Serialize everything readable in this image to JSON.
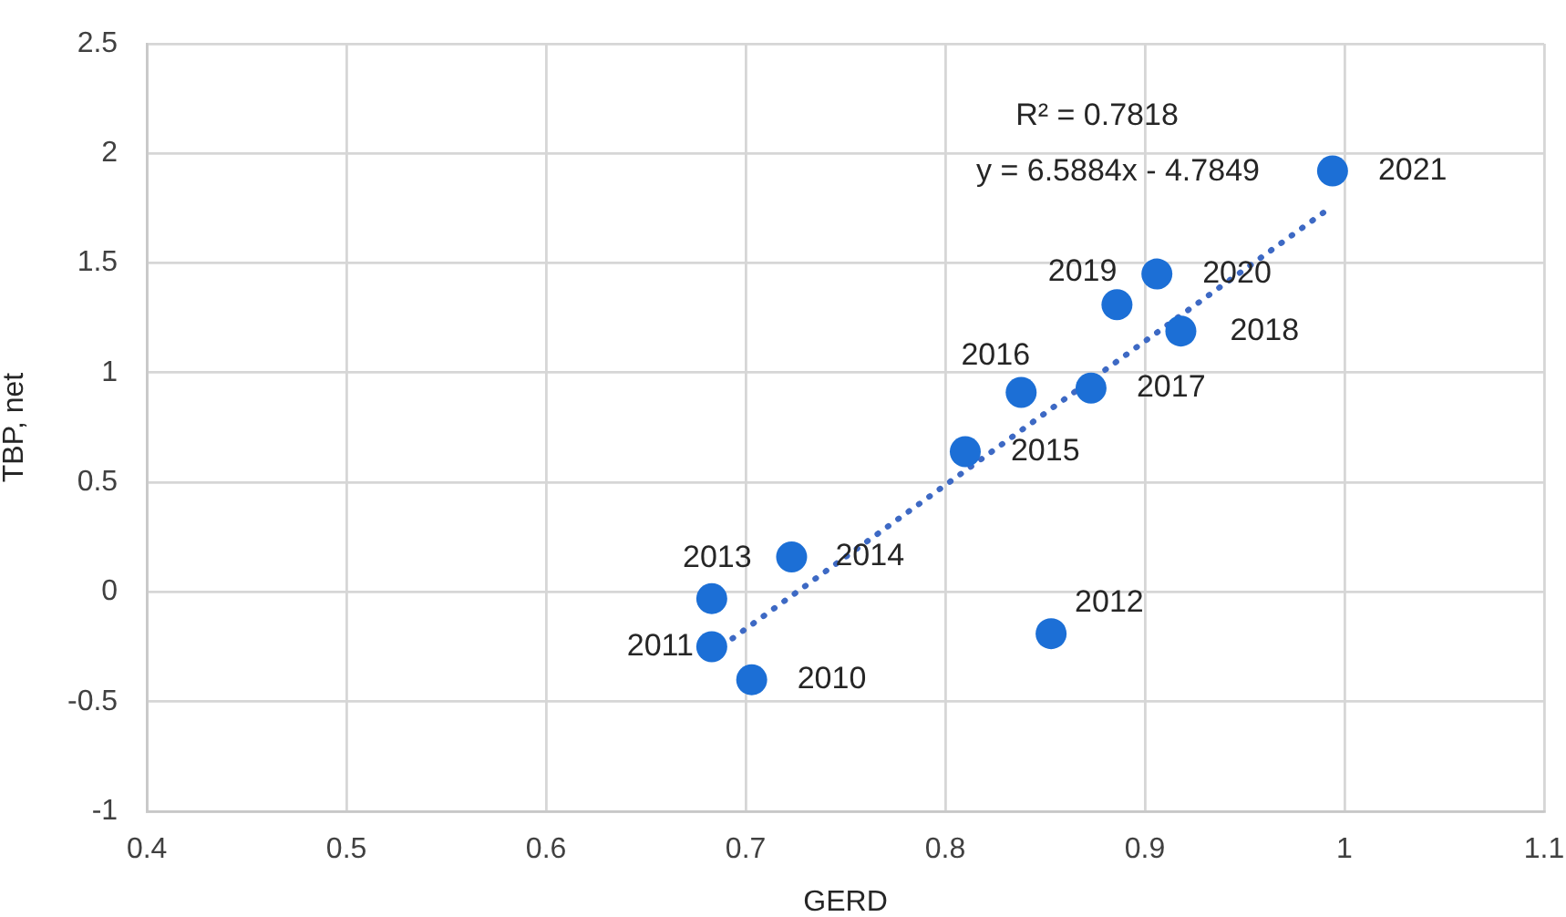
{
  "chart_data": {
    "type": "scatter",
    "xlabel": "GERD",
    "ylabel": "TBP, net",
    "xlim": [
      0.4,
      1.1
    ],
    "ylim": [
      -1,
      2.5
    ],
    "xticks": [
      0.4,
      0.5,
      0.6,
      0.7,
      0.8,
      0.9,
      1,
      1.1
    ],
    "yticks": [
      -1,
      -0.5,
      0,
      0.5,
      1,
      1.5,
      2,
      2.5
    ],
    "grid": true,
    "legend": false,
    "marker": "circle",
    "series": [
      {
        "color": "#1c6fd6",
        "x": [
          0.703,
          0.683,
          0.853,
          0.683,
          0.723,
          0.81,
          0.838,
          0.873,
          0.918,
          0.886,
          0.906,
          0.994
        ],
        "values": [
          -0.4,
          -0.25,
          -0.19,
          -0.03,
          0.16,
          0.64,
          0.91,
          0.93,
          1.19,
          1.31,
          1.45,
          1.92
        ]
      },
      {
        "type": "line",
        "color": "#3d69c4",
        "x": [
          0.683,
          0.994
        ],
        "values": [
          -0.28,
          1.76
        ],
        "line_style": "dotted",
        "marker": "none"
      }
    ],
    "annotations": [
      {
        "text": "2010",
        "x": 0.703,
        "y": -0.4
      },
      {
        "text": "2011",
        "x": 0.683,
        "y": -0.25
      },
      {
        "text": "2012",
        "x": 0.853,
        "y": -0.19
      },
      {
        "text": "2013",
        "x": 0.683,
        "y": -0.03
      },
      {
        "text": "2014",
        "x": 0.723,
        "y": 0.16
      },
      {
        "text": "2015",
        "x": 0.81,
        "y": 0.64
      },
      {
        "text": "2016",
        "x": 0.838,
        "y": 0.91
      },
      {
        "text": "2017",
        "x": 0.873,
        "y": 0.93
      },
      {
        "text": "2018",
        "x": 0.918,
        "y": 1.19
      },
      {
        "text": "2019",
        "x": 0.886,
        "y": 1.31
      },
      {
        "text": "2020",
        "x": 0.906,
        "y": 1.45
      },
      {
        "text": "2021",
        "x": 0.994,
        "y": 1.92
      },
      "R² = 0.7818",
      "y = 6.5884x - 4.7849"
    ]
  }
}
